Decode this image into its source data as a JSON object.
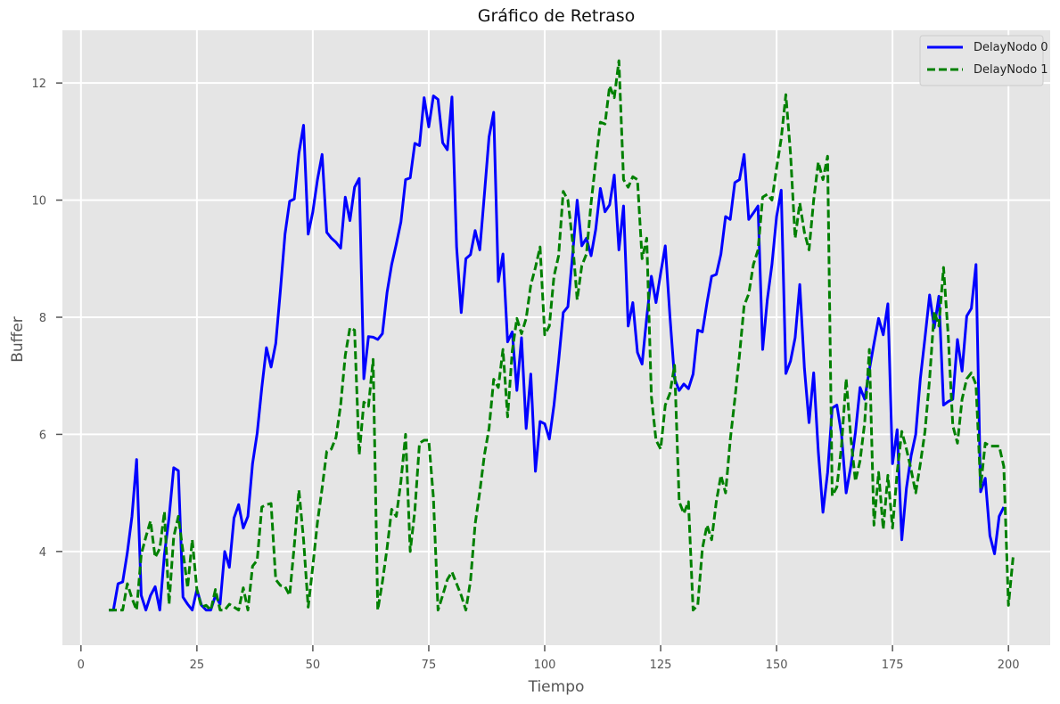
{
  "chart_data": {
    "type": "line",
    "title": "Gráfico de Retraso",
    "xlabel": "Tiempo",
    "ylabel": "Buffer",
    "xlim": [
      -4,
      209
    ],
    "ylim": [
      2.4,
      12.9
    ],
    "xticks": [
      0,
      25,
      50,
      75,
      100,
      125,
      150,
      175,
      200
    ],
    "yticks": [
      4,
      6,
      8,
      10,
      12
    ],
    "grid": true,
    "legend_position": "top-right",
    "x_start": 6,
    "series": [
      {
        "name": "DelayNodo 0",
        "color": "#0000ff",
        "style": "solid",
        "values": [
          3.0,
          3.0,
          3.45,
          3.48,
          3.98,
          4.6,
          5.57,
          3.25,
          3.0,
          3.25,
          3.4,
          3.0,
          3.95,
          4.58,
          5.43,
          5.38,
          3.22,
          3.1,
          3.0,
          3.35,
          3.08,
          3.0,
          3.0,
          3.25,
          3.1,
          4.0,
          3.73,
          4.57,
          4.8,
          4.4,
          4.6,
          5.5,
          6.02,
          6.8,
          7.48,
          7.15,
          7.55,
          8.45,
          9.42,
          9.98,
          10.02,
          10.8,
          11.28,
          9.42,
          9.8,
          10.35,
          10.78,
          9.45,
          9.35,
          9.28,
          9.18,
          10.05,
          9.65,
          10.22,
          10.37,
          6.95,
          7.67,
          7.66,
          7.62,
          7.72,
          8.42,
          8.9,
          9.25,
          9.63,
          10.35,
          10.38,
          10.97,
          10.93,
          11.75,
          11.25,
          11.78,
          11.72,
          10.98,
          10.86,
          11.76,
          9.2,
          8.08,
          9.0,
          9.07,
          9.48,
          9.15,
          10.1,
          11.08,
          11.5,
          8.61,
          9.08,
          7.58,
          7.75,
          6.75,
          7.65,
          6.1,
          7.03,
          5.37,
          6.22,
          6.18,
          5.92,
          6.5,
          7.25,
          8.08,
          8.18,
          9.05,
          10.0,
          9.22,
          9.35,
          9.05,
          9.5,
          10.2,
          9.8,
          9.92,
          10.43,
          9.15,
          9.9,
          7.85,
          8.25,
          7.4,
          7.2,
          8.0,
          8.7,
          8.25,
          8.75,
          9.22,
          8.02,
          6.95,
          6.75,
          6.86,
          6.78,
          7.03,
          7.78,
          7.75,
          8.25,
          8.7,
          8.73,
          9.08,
          9.72,
          9.67,
          10.3,
          10.35,
          10.78,
          9.67,
          9.78,
          9.9,
          7.45,
          8.3,
          8.9,
          9.72,
          10.17,
          7.04,
          7.25,
          7.65,
          8.56,
          7.13,
          6.2,
          7.05,
          5.7,
          4.67,
          5.35,
          6.45,
          6.5,
          6.0,
          5.0,
          5.45,
          6.03,
          6.8,
          6.6,
          7.1,
          7.55,
          7.98,
          7.7,
          8.23,
          5.5,
          6.08,
          4.2,
          5.08,
          5.63,
          6.0,
          6.95,
          7.65,
          8.38,
          7.82,
          8.36,
          6.5,
          6.56,
          6.6,
          7.62,
          7.08,
          8.02,
          8.15,
          8.9,
          5.02,
          5.25,
          4.27,
          3.96,
          4.6,
          4.76
        ]
      },
      {
        "name": "DelayNodo 1",
        "color": "#008000",
        "style": "dashed",
        "values": [
          3.0,
          3.0,
          3.0,
          3.0,
          3.45,
          3.2,
          3.0,
          3.95,
          4.25,
          4.52,
          3.9,
          4.05,
          4.68,
          3.1,
          4.25,
          4.6,
          4.0,
          3.38,
          4.2,
          3.35,
          3.05,
          3.08,
          3.0,
          3.35,
          3.0,
          3.0,
          3.1,
          3.05,
          3.0,
          3.38,
          3.0,
          3.75,
          3.85,
          4.76,
          4.8,
          4.82,
          3.52,
          3.42,
          3.4,
          3.25,
          4.1,
          5.05,
          4.2,
          3.05,
          3.75,
          4.5,
          5.08,
          5.71,
          5.75,
          5.95,
          6.5,
          7.35,
          7.82,
          7.78,
          5.65,
          6.55,
          6.48,
          7.28,
          3.0,
          3.48,
          4.05,
          4.72,
          4.6,
          5.2,
          6.0,
          4.0,
          4.7,
          5.85,
          5.9,
          5.9,
          4.92,
          3.0,
          3.25,
          3.52,
          3.65,
          3.45,
          3.25,
          3.0,
          3.5,
          4.47,
          5.02,
          5.65,
          6.1,
          6.94,
          6.8,
          7.45,
          6.3,
          7.42,
          7.98,
          7.72,
          7.98,
          8.55,
          8.85,
          9.2,
          7.7,
          7.85,
          8.7,
          9.05,
          10.15,
          10.0,
          9.3,
          8.3,
          8.88,
          9.08,
          9.95,
          10.65,
          11.33,
          11.3,
          11.95,
          11.75,
          12.38,
          10.35,
          10.22,
          10.4,
          10.35,
          9.0,
          9.35,
          6.65,
          5.9,
          5.75,
          6.5,
          6.7,
          7.18,
          4.85,
          4.65,
          4.85,
          3.0,
          3.08,
          4.05,
          4.45,
          4.2,
          4.85,
          5.3,
          5.0,
          5.9,
          6.6,
          7.35,
          8.2,
          8.4,
          8.9,
          9.15,
          10.05,
          10.1,
          10.0,
          10.55,
          11.05,
          11.8,
          10.8,
          9.35,
          9.95,
          9.45,
          9.15,
          10.0,
          10.65,
          10.35,
          10.75,
          4.95,
          5.1,
          5.8,
          6.95,
          5.95,
          5.2,
          5.55,
          6.2,
          7.45,
          4.45,
          5.35,
          4.38,
          5.3,
          4.4,
          5.35,
          6.05,
          5.75,
          5.4,
          5.0,
          5.5,
          6.05,
          6.95,
          8.1,
          7.85,
          8.85,
          7.7,
          6.15,
          5.85,
          6.6,
          6.95,
          7.05,
          6.85,
          5.1,
          5.85,
          5.8,
          5.8,
          5.8,
          5.45,
          3.08,
          3.9
        ]
      }
    ]
  }
}
